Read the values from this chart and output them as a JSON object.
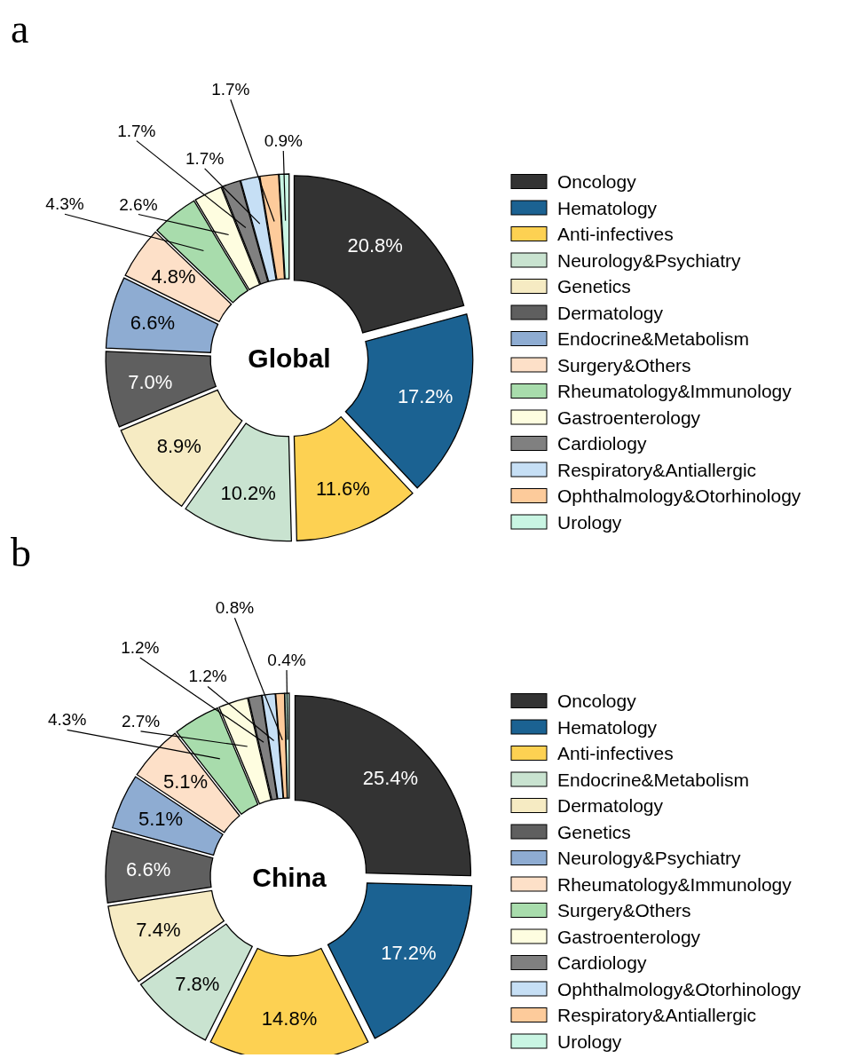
{
  "chart_data": [
    {
      "type": "donut",
      "title": "Global",
      "annotations": [
        "a"
      ],
      "legend": "right",
      "categories": [
        "Oncology",
        "Hematology",
        "Anti-infectives",
        "Neurology&Psychiatry",
        "Genetics",
        "Dermatology",
        "Endocrine&Metabolism",
        "Surgery&Others",
        "Rheumatology&Immunology",
        "Gastroenterology",
        "Cardiology",
        "Respiratory&Antiallergic",
        "Ophthalmology&Otorhinology",
        "Urology"
      ],
      "values": [
        20.8,
        17.2,
        11.6,
        10.2,
        8.9,
        7.0,
        6.6,
        4.8,
        4.3,
        2.6,
        1.7,
        1.7,
        1.7,
        0.9
      ],
      "value_labels": [
        "20.8%",
        "17.2%",
        "11.6%",
        "10.2%",
        "8.9%",
        "7.0%",
        "6.6%",
        "4.8%",
        "4.3%",
        "2.6%",
        "1.7%",
        "1.7%",
        "1.7%",
        "0.9%"
      ],
      "colors": [
        "#333333",
        "#1b6292",
        "#fdd152",
        "#c9e3d0",
        "#f6ebc3",
        "#5f5f5f",
        "#8eacd2",
        "#fde0c8",
        "#a8dcac",
        "#fefde0",
        "#808080",
        "#c6dff5",
        "#fdcb9b",
        "#c9f5e3"
      ]
    },
    {
      "type": "donut",
      "title": "China",
      "annotations": [
        "b"
      ],
      "legend": "right",
      "categories": [
        "Oncology",
        "Hematology",
        "Anti-infectives",
        "Endocrine&Metabolism",
        "Dermatology",
        "Genetics",
        "Neurology&Psychiatry",
        "Rheumatology&Immunology",
        "Surgery&Others",
        "Gastroenterology",
        "Cardiology",
        "Ophthalmology&Otorhinology",
        "Respiratory&Antiallergic",
        "Urology"
      ],
      "values": [
        25.4,
        17.2,
        14.8,
        7.8,
        7.4,
        6.6,
        5.1,
        5.1,
        4.3,
        2.7,
        1.2,
        1.2,
        0.8,
        0.4
      ],
      "value_labels": [
        "25.4%",
        "17.2%",
        "14.8%",
        "7.8%",
        "7.4%",
        "6.6%",
        "5.1%",
        "5.1%",
        "4.3%",
        "2.7%",
        "1.2%",
        "1.2%",
        "0.8%",
        "0.4%"
      ],
      "colors": [
        "#333333",
        "#1b6292",
        "#fdd152",
        "#c9e3d0",
        "#f6ebc3",
        "#5f5f5f",
        "#8eacd2",
        "#fde0c8",
        "#a8dcac",
        "#fefde0",
        "#808080",
        "#c6dff5",
        "#fdcb9b",
        "#c9f5e3"
      ]
    }
  ]
}
